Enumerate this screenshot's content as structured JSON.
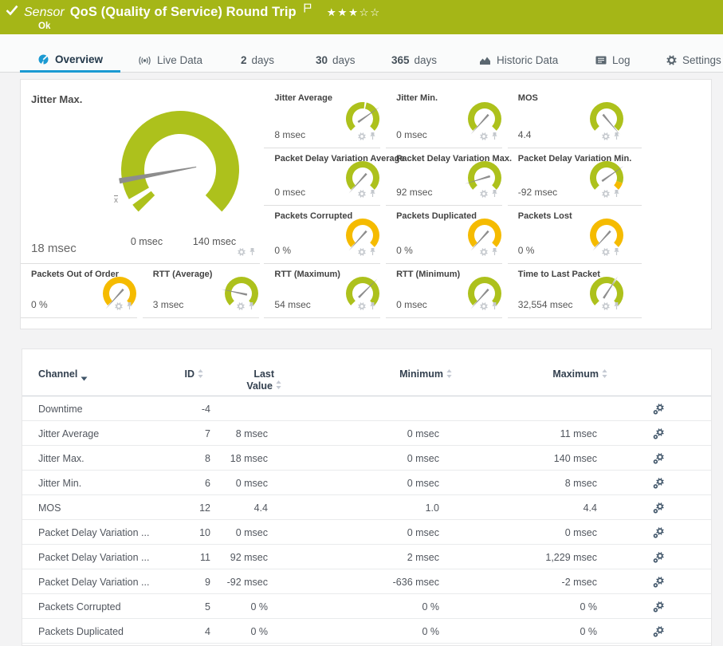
{
  "colors": {
    "brand_green": "#a5b617",
    "gauge_green": "#adc11c",
    "gauge_yellow": "#f5bb00",
    "needle": "#8d8d8d",
    "tab_blue": "#1b9ad2"
  },
  "header": {
    "kind": "Sensor",
    "title": "QoS (Quality of Service) Round Trip",
    "status": "Ok",
    "rating": {
      "filled": 3,
      "total": 5
    }
  },
  "tabs": [
    {
      "id": "overview",
      "icon": "gauge-icon",
      "label": "Overview",
      "active": true
    },
    {
      "id": "live-data",
      "icon": "broadcast-icon",
      "label": "Live Data"
    },
    {
      "id": "2-days",
      "number": "2",
      "label": "days"
    },
    {
      "id": "30-days",
      "number": "30",
      "label": "days"
    },
    {
      "id": "365-days",
      "number": "365",
      "label": "days"
    },
    {
      "id": "historic-data",
      "icon": "chart-icon",
      "label": "Historic Data"
    },
    {
      "id": "log",
      "icon": "log-icon",
      "label": "Log"
    },
    {
      "id": "settings",
      "icon": "gear-icon",
      "label": "Settings"
    }
  ],
  "chart_data": {
    "type": "gauges",
    "main_gauge": {
      "title": "Jitter Max.",
      "value_label": "18 msec",
      "value": 18,
      "scale_min_label": "0 msec",
      "scale_max_label": "140 msec",
      "scale_min": 0,
      "scale_max": 140,
      "color": "#adc11c",
      "needle_deg": 190.3,
      "avg_marker_deg": 213
    },
    "small_gauges": [
      {
        "title": "Jitter Average",
        "value_label": "8 msec",
        "color": "#adc11c",
        "needle_deg": 35,
        "notch_deg": 80
      },
      {
        "title": "Jitter Min.",
        "value_label": "0 msec",
        "color": "#adc11c",
        "needle_deg": 228
      },
      {
        "title": "MOS",
        "value_label": "4.4",
        "color": "#adc11c",
        "needle_deg": -50
      },
      {
        "title": "Packet Delay Variation Average",
        "value_label": "0 msec",
        "color": "#adc11c",
        "needle_deg": 228
      },
      {
        "title": "Packet Delay Variation Max.",
        "value_label": "92 msec",
        "color": "#adc11c",
        "needle_deg": 197
      },
      {
        "title": "Packet Delay Variation Min.",
        "value_label": "-92 msec",
        "color": "#adc11c",
        "needle_deg": 35,
        "end_segment": {
          "from_deg": -18,
          "color": "#f5bb00"
        }
      },
      {
        "title": "Packets Corrupted",
        "value_label": "0 %",
        "color": "#f5bb00",
        "needle_deg": 228
      },
      {
        "title": "Packets Duplicated",
        "value_label": "0 %",
        "color": "#f5bb00",
        "needle_deg": 228
      },
      {
        "title": "Packets Lost",
        "value_label": "0 %",
        "color": "#f5bb00",
        "needle_deg": 228
      },
      {
        "title": "Packets Out of Order",
        "value_label": "0 %",
        "color": "#f5bb00",
        "needle_deg": 228
      },
      {
        "title": "RTT (Average)",
        "value_label": "3 msec",
        "color": "#adc11c",
        "needle_deg": 168
      },
      {
        "title": "RTT (Maximum)",
        "value_label": "54 msec",
        "color": "#adc11c",
        "needle_deg": 45
      },
      {
        "title": "RTT (Minimum)",
        "value_label": "0 msec",
        "color": "#adc11c",
        "needle_deg": 228
      },
      {
        "title": "Time to Last Packet",
        "value_label": "32,554 msec",
        "color": "#adc11c",
        "needle_deg": 57,
        "notch_deg": 57
      }
    ]
  },
  "table": {
    "columns": {
      "channel": "Channel",
      "id": "ID",
      "last_line1": "Last",
      "last_line2": "Value",
      "minimum": "Minimum",
      "maximum": "Maximum"
    },
    "rows": [
      {
        "channel": "Downtime",
        "id": "-4",
        "last": "",
        "min": "",
        "max": ""
      },
      {
        "channel": "Jitter Average",
        "id": "7",
        "last": "8 msec",
        "min": "0 msec",
        "max": "11 msec"
      },
      {
        "channel": "Jitter Max.",
        "id": "8",
        "last": "18 msec",
        "min": "0 msec",
        "max": "140 msec"
      },
      {
        "channel": "Jitter Min.",
        "id": "6",
        "last": "0 msec",
        "min": "0 msec",
        "max": "8 msec"
      },
      {
        "channel": "MOS",
        "id": "12",
        "last": "4.4",
        "min": "1.0",
        "max": "4.4"
      },
      {
        "channel": "Packet Delay Variation ...",
        "id": "10",
        "last": "0 msec",
        "min": "0 msec",
        "max": "0 msec"
      },
      {
        "channel": "Packet Delay Variation ...",
        "id": "11",
        "last": "92 msec",
        "min": "2 msec",
        "max": "1,229 msec"
      },
      {
        "channel": "Packet Delay Variation ...",
        "id": "9",
        "last": "-92 msec",
        "min": "-636 msec",
        "max": "-2 msec"
      },
      {
        "channel": "Packets Corrupted",
        "id": "5",
        "last": "0 %",
        "min": "0 %",
        "max": "0 %"
      },
      {
        "channel": "Packets Duplicated",
        "id": "4",
        "last": "0 %",
        "min": "0 %",
        "max": "0 %"
      }
    ]
  }
}
